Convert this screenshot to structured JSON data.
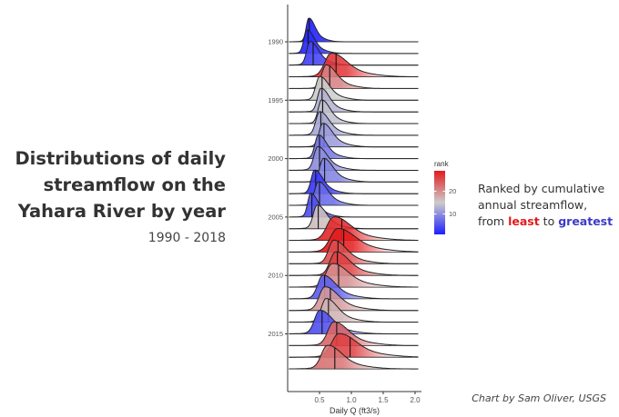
{
  "headline": {
    "line1": "Distributions of daily",
    "line2": "streamflow on the",
    "line3": "Yahara River by year"
  },
  "subtitle": "1990 - 2018",
  "annotation": {
    "line1": "Ranked by cumulative",
    "line2": "annual streamflow,",
    "line3_pre": "from ",
    "least": "least",
    "line3_mid": " to ",
    "greatest": "greatest"
  },
  "credit": "Chart by Sam Oliver, USGS",
  "colors": {
    "least": "#e41a1c",
    "mid": "#cccccc",
    "greatest": "#1f1fff",
    "line": "#222222"
  },
  "chart_data": {
    "type": "ridgeline",
    "xlabel": "Daily Q (ft3/s)",
    "xlim": [
      0,
      2.1
    ],
    "xticks": [
      0.5,
      1.0,
      1.5,
      2.0
    ],
    "xtick_labels": [
      "0.5",
      "1.0",
      "1.5",
      "2.0"
    ],
    "ytick_labels": [
      {
        "year": 1990,
        "label": "1990"
      },
      {
        "year": 1995,
        "label": "1995"
      },
      {
        "year": 2000,
        "label": "2000"
      },
      {
        "year": 2005,
        "label": "2005"
      },
      {
        "year": 2010,
        "label": "2010"
      },
      {
        "year": 2015,
        "label": "2015"
      }
    ],
    "legend": {
      "title": "rank",
      "ticks": [
        20,
        10
      ],
      "tick_labels": [
        "20",
        "10"
      ],
      "range": [
        1,
        29
      ],
      "placement": "right"
    },
    "series": [
      {
        "year": 1990,
        "rank": 1,
        "mode": 0.33,
        "median": 0.34,
        "spread": 0.06
      },
      {
        "year": 1991,
        "rank": 2,
        "mode": 0.3,
        "median": 0.32,
        "spread": 0.07
      },
      {
        "year": 1992,
        "rank": 4,
        "mode": 0.35,
        "median": 0.4,
        "spread": 0.08
      },
      {
        "year": 1993,
        "rank": 27,
        "mode": 0.68,
        "median": 0.76,
        "spread": 0.15
      },
      {
        "year": 1994,
        "rank": 21,
        "mode": 0.6,
        "median": 0.66,
        "spread": 0.1
      },
      {
        "year": 1995,
        "rank": 15,
        "mode": 0.5,
        "median": 0.54,
        "spread": 0.09
      },
      {
        "year": 1996,
        "rank": 13,
        "mode": 0.52,
        "median": 0.54,
        "spread": 0.08
      },
      {
        "year": 1997,
        "rank": 14,
        "mode": 0.53,
        "median": 0.55,
        "spread": 0.08
      },
      {
        "year": 1998,
        "rank": 12,
        "mode": 0.5,
        "median": 0.52,
        "spread": 0.09
      },
      {
        "year": 1999,
        "rank": 11,
        "mode": 0.55,
        "median": 0.57,
        "spread": 0.09
      },
      {
        "year": 2000,
        "rank": 8,
        "mode": 0.48,
        "median": 0.5,
        "spread": 0.08
      },
      {
        "year": 2001,
        "rank": 10,
        "mode": 0.47,
        "median": 0.5,
        "spread": 0.09
      },
      {
        "year": 2002,
        "rank": 9,
        "mode": 0.56,
        "median": 0.58,
        "spread": 0.09
      },
      {
        "year": 2003,
        "rank": 3,
        "mode": 0.42,
        "median": 0.44,
        "spread": 0.08
      },
      {
        "year": 2004,
        "rank": 7,
        "mode": 0.48,
        "median": 0.5,
        "spread": 0.09
      },
      {
        "year": 2005,
        "rank": 5,
        "mode": 0.36,
        "median": 0.38,
        "spread": 0.07
      },
      {
        "year": 2006,
        "rank": 16,
        "mode": 0.46,
        "median": 0.48,
        "spread": 0.09
      },
      {
        "year": 2007,
        "rank": 28,
        "mode": 0.72,
        "median": 0.85,
        "spread": 0.16
      },
      {
        "year": 2008,
        "rank": 29,
        "mode": 0.78,
        "median": 0.88,
        "spread": 0.17
      },
      {
        "year": 2009,
        "rank": 25,
        "mode": 0.72,
        "median": 0.79,
        "spread": 0.12
      },
      {
        "year": 2010,
        "rank": 26,
        "mode": 0.75,
        "median": 0.78,
        "spread": 0.13
      },
      {
        "year": 2011,
        "rank": 20,
        "mode": 0.7,
        "median": 0.8,
        "spread": 0.15
      },
      {
        "year": 2012,
        "rank": 6,
        "mode": 0.55,
        "median": 0.58,
        "spread": 0.12
      },
      {
        "year": 2013,
        "rank": 19,
        "mode": 0.58,
        "median": 0.67,
        "spread": 0.13
      },
      {
        "year": 2014,
        "rank": 17,
        "mode": 0.6,
        "median": 0.64,
        "spread": 0.11
      },
      {
        "year": 2015,
        "rank": 5,
        "mode": 0.5,
        "median": 0.54,
        "spread": 0.12
      },
      {
        "year": 2016,
        "rank": 23,
        "mode": 0.72,
        "median": 0.77,
        "spread": 0.14
      },
      {
        "year": 2017,
        "rank": 26,
        "mode": 0.8,
        "median": 0.98,
        "spread": 0.17
      },
      {
        "year": 2018,
        "rank": 22,
        "mode": 0.62,
        "median": 0.74,
        "spread": 0.14
      }
    ]
  }
}
